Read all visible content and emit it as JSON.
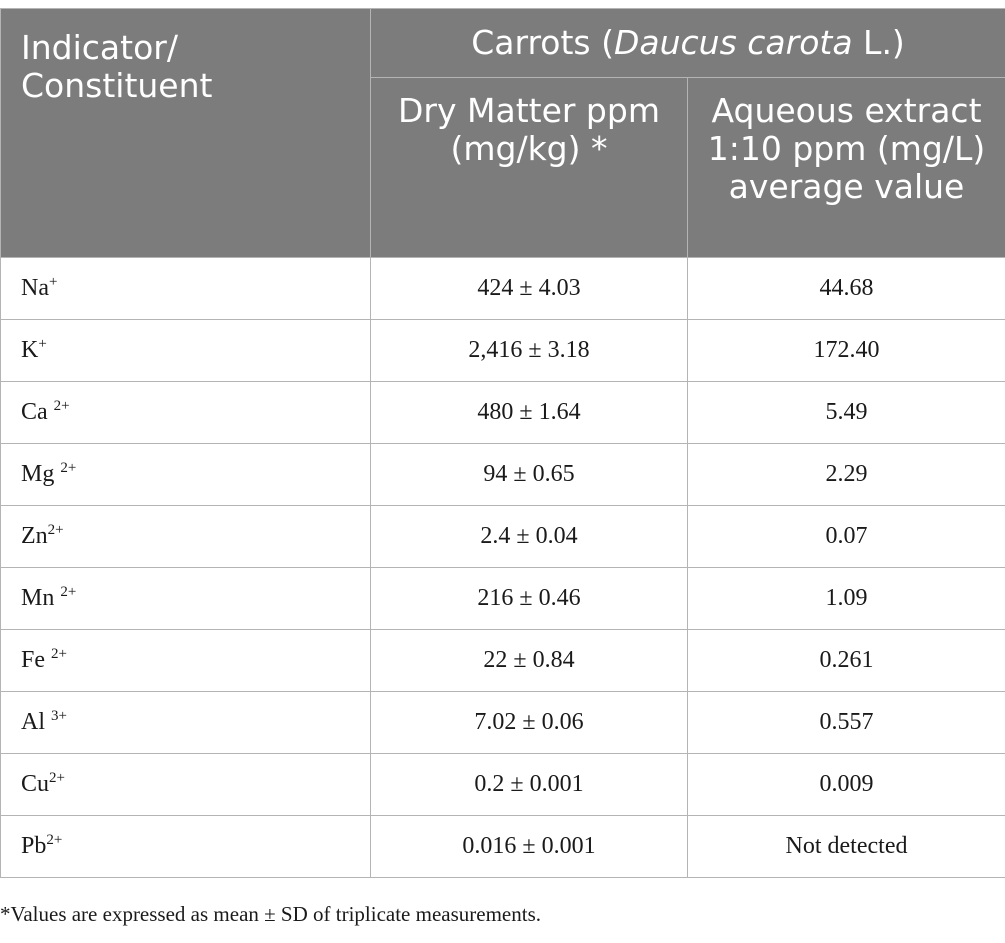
{
  "table": {
    "header": {
      "indicator": "Indicator/ Constituent",
      "group_prefix": "Carrots (",
      "group_species": "Daucus carota",
      "group_suffix": " L.)",
      "col_dry": "Dry Matter ppm (mg/kg) *",
      "col_aqueous": "Aqueous extract 1:10 ppm (mg/L) average value"
    },
    "rows": [
      {
        "element": "Na",
        "charge": "+",
        "dry": "424 ± 4.03",
        "aqueous": "44.68"
      },
      {
        "element": "K",
        "charge": "+",
        "dry": "2,416 ± 3.18",
        "aqueous": "172.40"
      },
      {
        "element": "Ca ",
        "charge": "2+",
        "dry": "480 ± 1.64",
        "aqueous": "5.49"
      },
      {
        "element": "Mg ",
        "charge": "2+",
        "dry": "94 ± 0.65",
        "aqueous": "2.29"
      },
      {
        "element": "Zn",
        "charge": "2+",
        "dry": "2.4 ± 0.04",
        "aqueous": "0.07"
      },
      {
        "element": "Mn ",
        "charge": "2+",
        "dry": "216 ± 0.46",
        "aqueous": "1.09"
      },
      {
        "element": "Fe ",
        "charge": "2+",
        "dry": "22 ± 0.84",
        "aqueous": "0.261"
      },
      {
        "element": "Al ",
        "charge": "3+",
        "dry": "7.02 ± 0.06",
        "aqueous": "0.557"
      },
      {
        "element": "Cu",
        "charge": "2+",
        "dry": "0.2 ± 0.001",
        "aqueous": "0.009"
      },
      {
        "element": "Pb",
        "charge": "2+",
        "dry": "0.016 ± 0.001",
        "aqueous": "Not detected"
      }
    ]
  },
  "footnote": "*Values are expressed as mean ± SD of triplicate measurements."
}
